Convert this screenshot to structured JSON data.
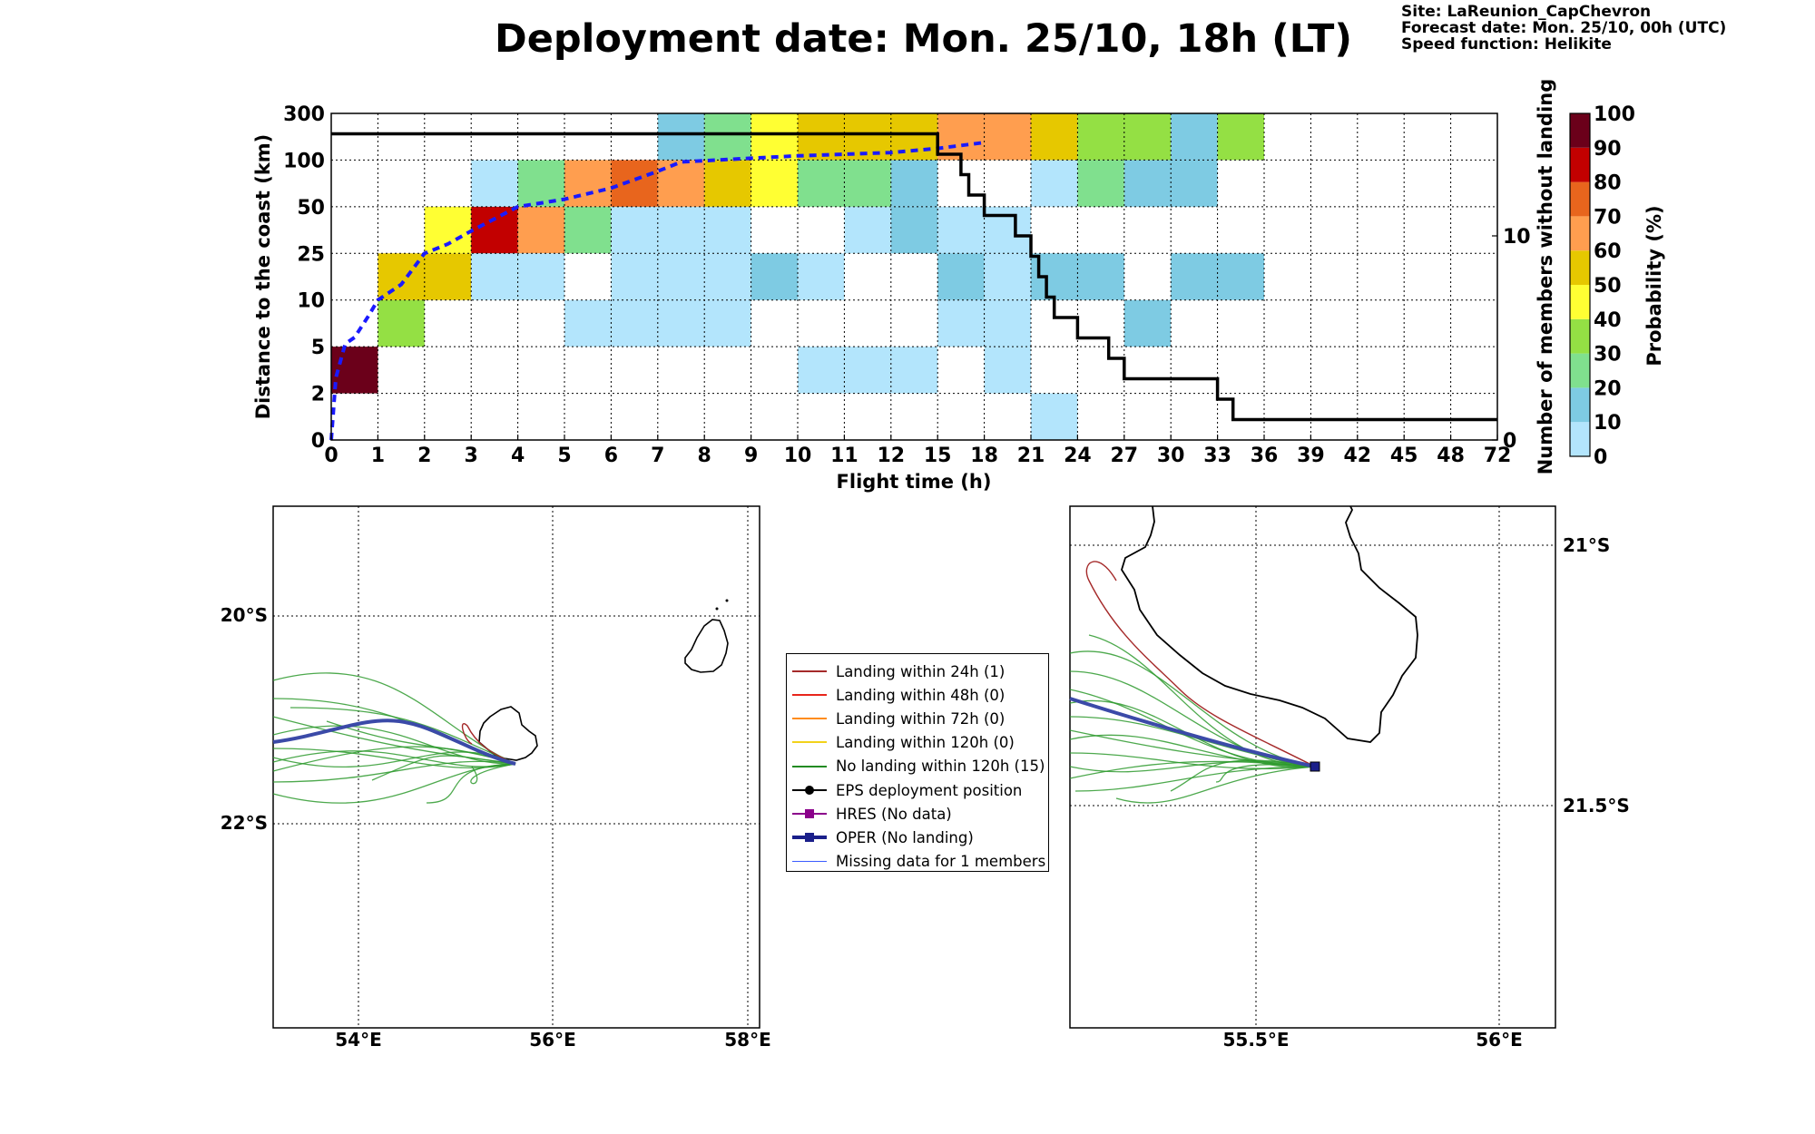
{
  "title": "Deployment date: Mon. 25/10, 18h (LT)",
  "info": {
    "site": "Site: LaReunion_CapChevron",
    "forecast": "Forecast date: Mon. 25/10, 00h (UTC)",
    "speed": "Speed function: Helikite"
  },
  "chart_data": [
    {
      "type": "heatmap",
      "title": "",
      "xlabel": "Flight time (h)",
      "ylabel": "Distance to the coast (km)",
      "y2label": "Number of members without landing",
      "x_ticks": [
        "0",
        "1",
        "2",
        "3",
        "4",
        "5",
        "6",
        "7",
        "8",
        "9",
        "10",
        "11",
        "12",
        "15",
        "18",
        "21",
        "24",
        "27",
        "30",
        "33",
        "36",
        "39",
        "42",
        "45",
        "48",
        "72"
      ],
      "y_ticks": [
        "0",
        "2",
        "5",
        "10",
        "25",
        "50",
        "100",
        "300"
      ],
      "y2_ticks": [
        "0",
        "10"
      ],
      "y2lim": [
        0,
        16
      ],
      "grid": true,
      "colorbar": {
        "label": "Probability (%)",
        "ticks": [
          "0",
          "10",
          "20",
          "30",
          "40",
          "50",
          "60",
          "70",
          "80",
          "90",
          "100"
        ],
        "colors": [
          "#b3e5fc",
          "#7ecbe3",
          "#80e08e",
          "#94e044",
          "#ffff33",
          "#e6c800",
          "#ff9e4f",
          "#e8651d",
          "#c20000",
          "#6b001a"
        ]
      },
      "cells": [
        {
          "x": [
            0,
            1
          ],
          "y": [
            2,
            5
          ],
          "p": 95
        },
        {
          "x": [
            1,
            2
          ],
          "y": [
            5,
            10
          ],
          "p": 35
        },
        {
          "x": [
            1,
            3
          ],
          "y": [
            10,
            25
          ],
          "p": 55
        },
        {
          "x": [
            2,
            3
          ],
          "y": [
            25,
            50
          ],
          "p": 45
        },
        {
          "x": [
            3,
            4
          ],
          "y": [
            25,
            50
          ],
          "p": 85
        },
        {
          "x": [
            4,
            5
          ],
          "y": [
            25,
            50
          ],
          "p": 65
        },
        {
          "x": [
            5,
            6
          ],
          "y": [
            25,
            50
          ],
          "p": 25
        },
        {
          "x": [
            6,
            9
          ],
          "y": [
            25,
            50
          ],
          "p": 5
        },
        {
          "x": [
            11,
            12
          ],
          "y": [
            25,
            50
          ],
          "p": 5
        },
        {
          "x": [
            12,
            15
          ],
          "y": [
            25,
            50
          ],
          "p": 15
        },
        {
          "x": [
            15,
            21
          ],
          "y": [
            25,
            50
          ],
          "p": 5
        },
        {
          "x": [
            3,
            5
          ],
          "y": [
            10,
            25
          ],
          "p": 5
        },
        {
          "x": [
            6,
            9
          ],
          "y": [
            10,
            25
          ],
          "p": 5
        },
        {
          "x": [
            9,
            10
          ],
          "y": [
            10,
            25
          ],
          "p": 15
        },
        {
          "x": [
            10,
            11
          ],
          "y": [
            10,
            25
          ],
          "p": 5
        },
        {
          "x": [
            15,
            18
          ],
          "y": [
            10,
            25
          ],
          "p": 15
        },
        {
          "x": [
            18,
            21
          ],
          "y": [
            10,
            25
          ],
          "p": 5
        },
        {
          "x": [
            21,
            27
          ],
          "y": [
            10,
            25
          ],
          "p": 15
        },
        {
          "x": [
            30,
            36
          ],
          "y": [
            10,
            25
          ],
          "p": 15
        },
        {
          "x": [
            5,
            9
          ],
          "y": [
            5,
            10
          ],
          "p": 5
        },
        {
          "x": [
            15,
            21
          ],
          "y": [
            5,
            10
          ],
          "p": 5
        },
        {
          "x": [
            27,
            30
          ],
          "y": [
            5,
            10
          ],
          "p": 15
        },
        {
          "x": [
            10,
            15
          ],
          "y": [
            2,
            5
          ],
          "p": 5
        },
        {
          "x": [
            18,
            21
          ],
          "y": [
            2,
            5
          ],
          "p": 5
        },
        {
          "x": [
            21,
            24
          ],
          "y": [
            0,
            2
          ],
          "p": 5
        },
        {
          "x": [
            3,
            4
          ],
          "y": [
            50,
            100
          ],
          "p": 5
        },
        {
          "x": [
            4,
            5
          ],
          "y": [
            50,
            100
          ],
          "p": 25
        },
        {
          "x": [
            5,
            6
          ],
          "y": [
            50,
            100
          ],
          "p": 65
        },
        {
          "x": [
            6,
            7
          ],
          "y": [
            50,
            100
          ],
          "p": 75
        },
        {
          "x": [
            7,
            8
          ],
          "y": [
            50,
            100
          ],
          "p": 65
        },
        {
          "x": [
            8,
            9
          ],
          "y": [
            50,
            100
          ],
          "p": 55
        },
        {
          "x": [
            9,
            10
          ],
          "y": [
            50,
            100
          ],
          "p": 45
        },
        {
          "x": [
            10,
            12
          ],
          "y": [
            50,
            100
          ],
          "p": 25
        },
        {
          "x": [
            12,
            15
          ],
          "y": [
            50,
            100
          ],
          "p": 15
        },
        {
          "x": [
            21,
            24
          ],
          "y": [
            50,
            100
          ],
          "p": 5
        },
        {
          "x": [
            24,
            27
          ],
          "y": [
            50,
            100
          ],
          "p": 25
        },
        {
          "x": [
            27,
            33
          ],
          "y": [
            50,
            100
          ],
          "p": 15
        },
        {
          "x": [
            7,
            8
          ],
          "y": [
            100,
            300
          ],
          "p": 15
        },
        {
          "x": [
            8,
            9
          ],
          "y": [
            100,
            300
          ],
          "p": 25
        },
        {
          "x": [
            9,
            10
          ],
          "y": [
            100,
            300
          ],
          "p": 45
        },
        {
          "x": [
            10,
            15
          ],
          "y": [
            100,
            300
          ],
          "p": 55
        },
        {
          "x": [
            15,
            21
          ],
          "y": [
            100,
            300
          ],
          "p": 65
        },
        {
          "x": [
            21,
            24
          ],
          "y": [
            100,
            300
          ],
          "p": 55
        },
        {
          "x": [
            24,
            30
          ],
          "y": [
            100,
            300
          ],
          "p": 35
        },
        {
          "x": [
            30,
            33
          ],
          "y": [
            100,
            300
          ],
          "p": 15
        },
        {
          "x": [
            33,
            36
          ],
          "y": [
            100,
            300
          ],
          "p": 35
        }
      ],
      "series": [
        {
          "style": "dashed-blue",
          "points": [
            [
              0,
              0
            ],
            [
              0.1,
              3
            ],
            [
              0.3,
              5.3
            ],
            [
              0.5,
              6
            ],
            [
              0.8,
              8.3
            ],
            [
              1,
              10
            ],
            [
              1.5,
              15
            ],
            [
              2,
              25
            ],
            [
              2.5,
              30
            ],
            [
              3,
              37
            ],
            [
              4,
              50
            ],
            [
              5,
              58
            ],
            [
              6,
              70
            ],
            [
              7,
              88
            ],
            [
              7.5,
              98
            ],
            [
              9,
              108
            ],
            [
              10,
              118
            ],
            [
              11,
              125
            ],
            [
              12,
              132
            ],
            [
              15,
              150
            ],
            [
              18,
              175
            ]
          ]
        },
        {
          "style": "solid-black-step",
          "points": [
            [
              0,
              15
            ],
            [
              15,
              15
            ],
            [
              15,
              14
            ],
            [
              16.5,
              14
            ],
            [
              16.5,
              13
            ],
            [
              17,
              13
            ],
            [
              17,
              12
            ],
            [
              18,
              12
            ],
            [
              18,
              11
            ],
            [
              20,
              11
            ],
            [
              20,
              10
            ],
            [
              21,
              10
            ],
            [
              21,
              9
            ],
            [
              21.5,
              9
            ],
            [
              21.5,
              8
            ],
            [
              22,
              8
            ],
            [
              22,
              7
            ],
            [
              22.5,
              7
            ],
            [
              22.5,
              6
            ],
            [
              24,
              6
            ],
            [
              24,
              5
            ],
            [
              26,
              5
            ],
            [
              26,
              4
            ],
            [
              27,
              4
            ],
            [
              27,
              3
            ],
            [
              33,
              3
            ],
            [
              33,
              2
            ],
            [
              34,
              2
            ],
            [
              34,
              1
            ],
            [
              72,
              1
            ]
          ]
        }
      ]
    },
    {
      "type": "map",
      "title": "",
      "x_ticks": [
        "54°E",
        "56°E",
        "58°E"
      ],
      "y_ticks": [
        "20°S",
        "22°S"
      ],
      "grid": true
    },
    {
      "type": "map",
      "title": "",
      "x_ticks": [
        "55.5°E",
        "56°E"
      ],
      "y_ticks": [
        "21°S",
        "21.5°S"
      ],
      "grid": true
    }
  ],
  "legend": {
    "items": [
      {
        "label": "Landing within 24h (1)",
        "color": "#a52a2a",
        "style": "line"
      },
      {
        "label": "Landing within 48h (0)",
        "color": "#e8251b",
        "style": "line"
      },
      {
        "label": "Landing within 72h (0)",
        "color": "#ff8c1a",
        "style": "line"
      },
      {
        "label": "Landing within 120h (0)",
        "color": "#f2d21b",
        "style": "line"
      },
      {
        "label": "No landing within 120h (15)",
        "color": "#228b22",
        "style": "line"
      },
      {
        "label": "EPS deployment position",
        "color": "#000000",
        "style": "line-dot"
      },
      {
        "label": "HRES (No data)",
        "color": "#8b008b",
        "style": "line-square"
      },
      {
        "label": "OPER (No landing)",
        "color": "#1a1f8a",
        "style": "line-square-thick"
      },
      {
        "label": "Missing data for 1 members",
        "color": "#3b5bff",
        "style": "line-thin"
      }
    ]
  }
}
